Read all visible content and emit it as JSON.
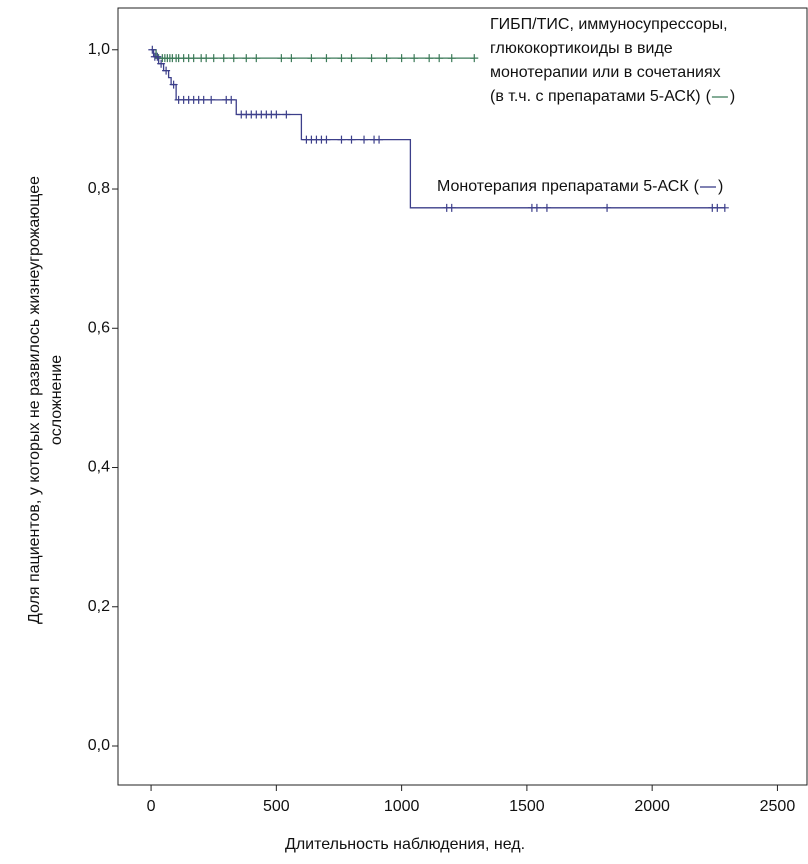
{
  "chart_data": {
    "type": "step",
    "x_label": "Длительность наблюдения, нед.",
    "y_label": [
      "Доля пациентов, у которых не развилось жизнеугрожающее",
      "осложнение"
    ],
    "xlim": [
      -132,
      2622
    ],
    "xticks": [
      0,
      500,
      1000,
      1500,
      2000,
      2500
    ],
    "ylim": [
      -0.056,
      1.06
    ],
    "yticks": [
      {
        "value": 0,
        "label": "0,0"
      },
      {
        "value": 0.2,
        "label": "0,2"
      },
      {
        "value": 0.4,
        "label": "0,4"
      },
      {
        "value": 0.6,
        "label": "0,6"
      },
      {
        "value": 0.8,
        "label": "0,8"
      },
      {
        "value": 1,
        "label": "1,0"
      }
    ],
    "legend_key": [
      "(",
      ")"
    ],
    "series": [
      {
        "name": [
          "ГИБП/ТИС, иммуносупрессоры,",
          "глюкокортикоиды в виде",
          "монотерапии или в сочетаниях",
          "(в т.ч. с препаратами 5-АСК)"
        ],
        "color": "#3b7a58",
        "x": [
          0,
          20,
          1290
        ],
        "values": [
          1,
          0.988,
          0.988
        ],
        "censored": [
          30,
          45,
          55,
          65,
          75,
          85,
          100,
          110,
          130,
          150,
          170,
          200,
          220,
          250,
          290,
          330,
          380,
          420,
          520,
          560,
          640,
          700,
          760,
          800,
          880,
          940,
          1000,
          1050,
          1110,
          1150,
          1200,
          1290
        ]
      },
      {
        "name": [
          "Монотерапия препаратами 5-АСК"
        ],
        "color": "#3c3f8a",
        "x": [
          0,
          10,
          30,
          50,
          70,
          80,
          100,
          340,
          600,
          1035,
          2290
        ],
        "values": [
          1,
          0.99,
          0.98,
          0.97,
          0.96,
          0.95,
          0.928,
          0.907,
          0.871,
          0.773,
          0.773
        ],
        "censored": [
          5,
          15,
          25,
          40,
          60,
          90,
          110,
          130,
          150,
          170,
          190,
          210,
          240,
          300,
          320,
          360,
          380,
          400,
          420,
          440,
          460,
          480,
          500,
          540,
          620,
          640,
          660,
          680,
          700,
          760,
          800,
          850,
          890,
          910,
          1180,
          1200,
          1520,
          1540,
          1580,
          1820,
          2240,
          2260,
          2290
        ]
      }
    ]
  }
}
